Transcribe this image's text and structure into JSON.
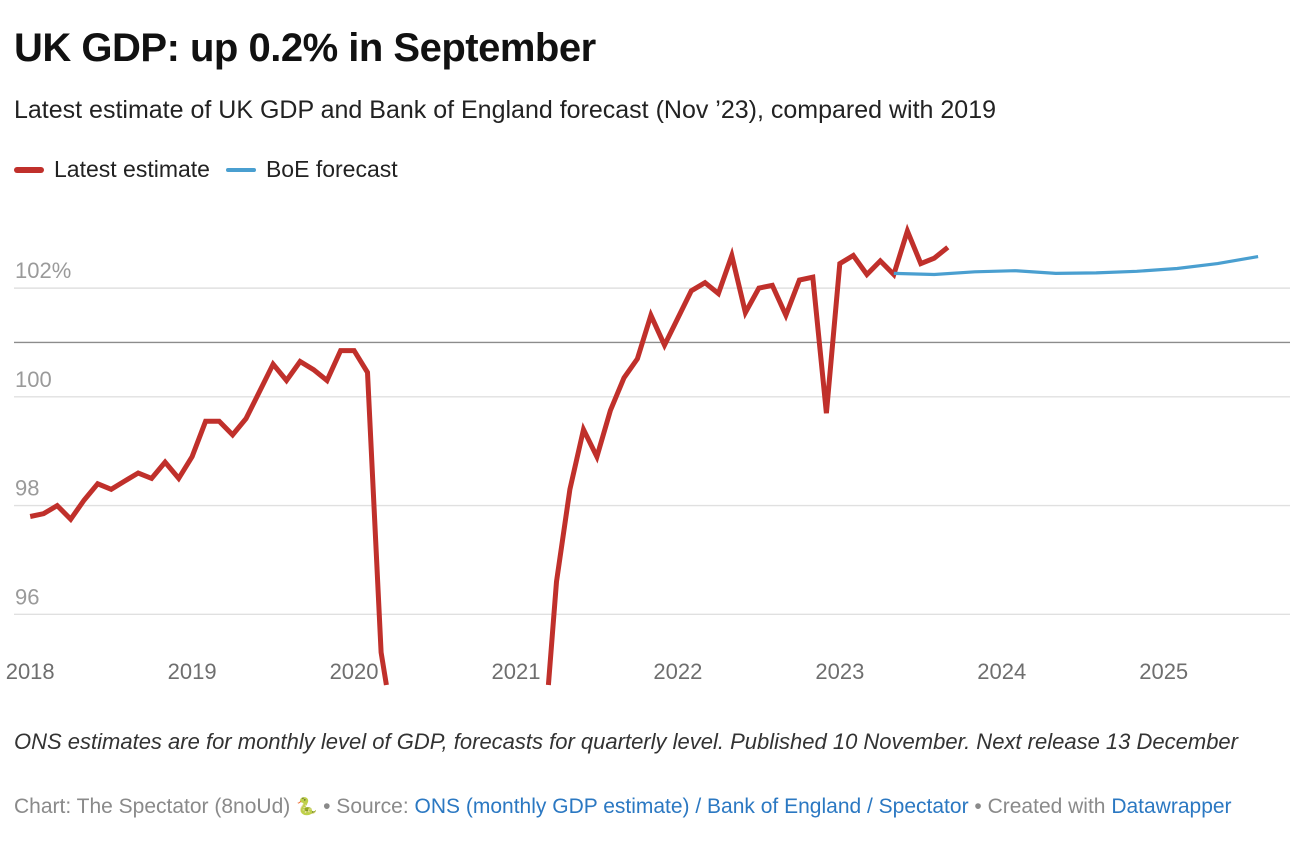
{
  "header": {
    "title": "UK GDP: up 0.2% in September",
    "subtitle": "Latest estimate of UK GDP and Bank of England forecast (Nov ’23), compared with 2019"
  },
  "legend": {
    "items": [
      {
        "label": "Latest estimate",
        "color": "#c0302b"
      },
      {
        "label": "BoE forecast",
        "color": "#4a9fd0"
      }
    ]
  },
  "chart_data": {
    "type": "line",
    "title": "UK GDP: up 0.2% in September",
    "subtitle": "Latest estimate of UK GDP and Bank of England forecast (Nov ’23), compared with 2019",
    "xlabel": "",
    "ylabel": "",
    "xlim": [
      2017.9,
      2025.78
    ],
    "ylim": [
      94.7,
      103.4
    ],
    "y_ticks": [
      96,
      98,
      100,
      102
    ],
    "y_tick_labels": [
      "96",
      "98",
      "100",
      "102%"
    ],
    "x_ticks": [
      2018,
      2019,
      2020,
      2021,
      2022,
      2023,
      2024,
      2025
    ],
    "x_tick_labels": [
      "2018",
      "2019",
      "2020",
      "2021",
      "2022",
      "2023",
      "2024",
      "2025"
    ],
    "reference_line": 101,
    "grid": true,
    "legend_position": "top-left",
    "series": [
      {
        "name": "Latest estimate",
        "color": "#c0302b",
        "x": [
          2018.0,
          2018.083,
          2018.167,
          2018.25,
          2018.333,
          2018.417,
          2018.5,
          2018.583,
          2018.667,
          2018.75,
          2018.833,
          2018.917,
          2019.0,
          2019.083,
          2019.167,
          2019.25,
          2019.333,
          2019.417,
          2019.5,
          2019.583,
          2019.667,
          2019.75,
          2019.833,
          2019.917,
          2020.0,
          2020.083,
          2020.167,
          2020.2,
          null,
          2021.2,
          2021.25,
          2021.333,
          2021.417,
          2021.5,
          2021.583,
          2021.667,
          2021.75,
          2021.833,
          2021.917,
          2022.0,
          2022.083,
          2022.167,
          2022.25,
          2022.333,
          2022.417,
          2022.5,
          2022.583,
          2022.667,
          2022.75,
          2022.833,
          2022.917,
          2023.0,
          2023.083,
          2023.167,
          2023.25,
          2023.333,
          2023.417,
          2023.5,
          2023.583,
          2023.667
        ],
        "y": [
          97.8,
          97.85,
          98.0,
          97.75,
          98.1,
          98.4,
          98.3,
          98.45,
          98.6,
          98.5,
          98.8,
          98.5,
          98.9,
          99.55,
          99.55,
          99.3,
          99.6,
          100.1,
          100.6,
          100.3,
          100.65,
          100.5,
          100.3,
          100.85,
          100.85,
          100.45,
          95.3,
          94.7,
          null,
          94.7,
          96.6,
          98.3,
          99.4,
          98.9,
          99.75,
          100.35,
          100.7,
          101.5,
          100.95,
          101.45,
          101.95,
          102.1,
          101.9,
          102.6,
          101.55,
          102.0,
          102.05,
          101.5,
          102.15,
          102.2,
          99.7,
          102.45,
          102.6,
          102.25,
          102.5,
          102.25,
          103.05,
          102.45,
          102.55,
          102.75
        ]
      },
      {
        "name": "BoE forecast",
        "color": "#4a9fd0",
        "x": [
          2023.333,
          2023.583,
          2023.833,
          2024.083,
          2024.333,
          2024.583,
          2024.833,
          2025.083,
          2025.333,
          2025.583
        ],
        "y": [
          102.27,
          102.25,
          102.3,
          102.32,
          102.27,
          102.28,
          102.31,
          102.36,
          102.45,
          102.58
        ]
      }
    ]
  },
  "footer": {
    "notes": "ONS estimates are for monthly level of GDP, forecasts for quarterly level. Published 10 November. Next release 13 December",
    "chart_credit": "Chart: The Spectator (8noUd)",
    "snake_glyph": "🐍",
    "source_prefix": "• Source:",
    "source_link": "ONS (monthly GDP estimate) / Bank of England / Spectator",
    "created_prefix": "• Created with",
    "created_link": "Datawrapper"
  }
}
